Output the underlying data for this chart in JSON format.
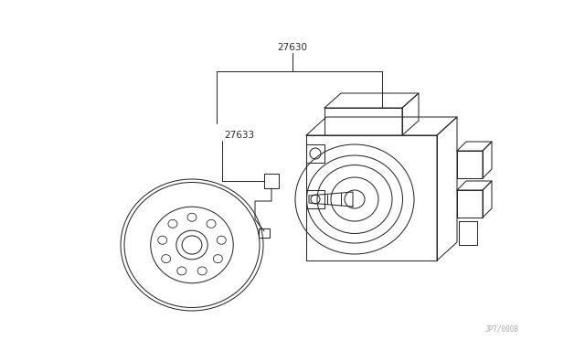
{
  "background_color": "#ffffff",
  "line_color": "#2a2a2a",
  "label_27630": "27630",
  "label_27633": "27633",
  "watermark": "JP7/0008",
  "fig_width": 6.4,
  "fig_height": 3.72,
  "dpi": 100,
  "lw": 0.75
}
